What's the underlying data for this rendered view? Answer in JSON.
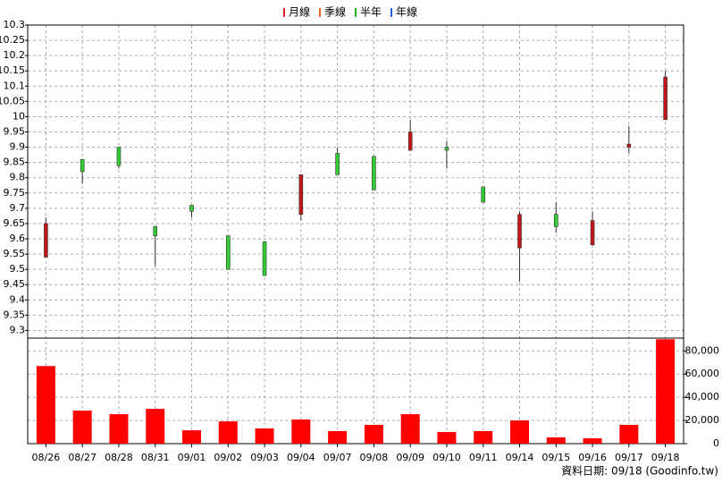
{
  "chart_data": [
    {
      "type": "candlestick",
      "legend": [
        {
          "name": "月線",
          "color": "#e02020"
        },
        {
          "name": "季線",
          "color": "#e06020"
        },
        {
          "name": "半年",
          "color": "#20b020"
        },
        {
          "name": "年線",
          "color": "#2060e0"
        }
      ],
      "categories": [
        "08/26",
        "08/27",
        "08/28",
        "08/31",
        "09/01",
        "09/02",
        "09/03",
        "09/04",
        "09/07",
        "09/08",
        "09/09",
        "09/10",
        "09/11",
        "09/14",
        "09/15",
        "09/16",
        "09/17",
        "09/18"
      ],
      "open": [
        9.54,
        9.86,
        9.9,
        9.64,
        9.71,
        9.61,
        9.59,
        9.68,
        9.88,
        9.87,
        9.89,
        9.9,
        9.77,
        9.57,
        9.68,
        9.58,
        9.9,
        9.99
      ],
      "high": [
        9.67,
        9.86,
        9.9,
        9.64,
        9.71,
        9.61,
        9.59,
        9.81,
        9.9,
        9.87,
        9.99,
        9.92,
        9.77,
        9.69,
        9.72,
        9.69,
        9.97,
        10.15
      ],
      "low": [
        9.54,
        9.78,
        9.83,
        9.51,
        9.67,
        9.5,
        9.48,
        9.66,
        9.81,
        9.76,
        9.89,
        9.83,
        9.72,
        9.46,
        9.62,
        9.58,
        9.88,
        9.99
      ],
      "close": [
        9.65,
        9.82,
        9.84,
        9.61,
        9.69,
        9.5,
        9.48,
        9.81,
        9.81,
        9.76,
        9.95,
        9.89,
        9.72,
        9.68,
        9.64,
        9.66,
        9.91,
        10.13
      ],
      "up_color": "#c01818",
      "down_color": "#33cc33",
      "ylim": [
        9.275,
        10.3
      ],
      "yticks": [
        9.3,
        9.35,
        9.4,
        9.45,
        9.5,
        9.55,
        9.6,
        9.65,
        9.7,
        9.75,
        9.8,
        9.85,
        9.9,
        9.95,
        10,
        10.05,
        10.1,
        10.15,
        10.2,
        10.25,
        10.3
      ],
      "grid": true
    },
    {
      "type": "bar",
      "values": [
        66900,
        28500,
        25400,
        30000,
        11500,
        19200,
        13100,
        20800,
        10800,
        16200,
        25400,
        10000,
        10800,
        20000,
        5400,
        4600,
        16200,
        90000
      ],
      "color": "#ff0000",
      "ylim": [
        0,
        91000
      ],
      "yticks": [
        0,
        {
          "value": 20000,
          "label": "20,000"
        },
        {
          "value": 40000,
          "label": "40,000"
        },
        {
          "value": 60000,
          "label": "60,000"
        },
        {
          "value": 80000,
          "label": "80,000"
        }
      ],
      "grid": true,
      "footnote": "資料日期: 09/18  (Goodinfo.tw)"
    }
  ]
}
